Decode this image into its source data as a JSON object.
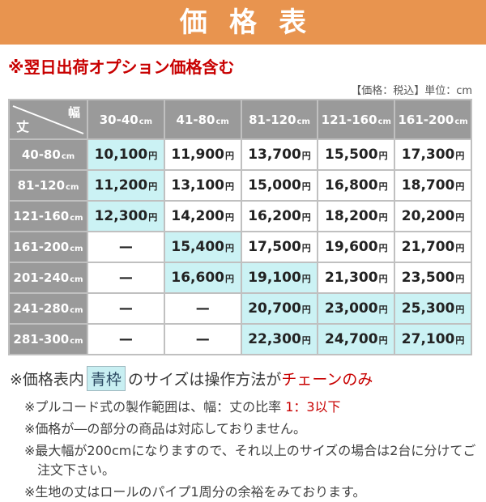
{
  "banner": {
    "title": "価格表"
  },
  "subtitle": {
    "text": "※翌日出荷オプション価格含む"
  },
  "unit_note": "【価格：税込】単位：cm",
  "colors": {
    "accent_orange": "#E8944F",
    "alert_red": "#C80000",
    "header_gray": "#9A9A9A",
    "highlight_cyan": "#CBF2F4"
  },
  "table": {
    "corner_top": "幅",
    "corner_bottom": "丈",
    "unit_small": "cm",
    "yen_suffix": "円",
    "col_headers": [
      "30-40",
      "41-80",
      "81-120",
      "121-160",
      "161-200"
    ],
    "rows": [
      {
        "label": "40-80",
        "cells": [
          {
            "v": "10,100",
            "hl": true
          },
          {
            "v": "11,900"
          },
          {
            "v": "13,700"
          },
          {
            "v": "15,500"
          },
          {
            "v": "17,300"
          }
        ]
      },
      {
        "label": "81-120",
        "cells": [
          {
            "v": "11,200",
            "hl": true
          },
          {
            "v": "13,100"
          },
          {
            "v": "15,000"
          },
          {
            "v": "16,800"
          },
          {
            "v": "18,700"
          }
        ]
      },
      {
        "label": "121-160",
        "cells": [
          {
            "v": "12,300",
            "hl": true
          },
          {
            "v": "14,200"
          },
          {
            "v": "16,200"
          },
          {
            "v": "18,200"
          },
          {
            "v": "20,200"
          }
        ]
      },
      {
        "label": "161-200",
        "cells": [
          {
            "v": "—",
            "dash": true
          },
          {
            "v": "15,400",
            "hl": true
          },
          {
            "v": "17,500"
          },
          {
            "v": "19,600"
          },
          {
            "v": "21,700"
          }
        ]
      },
      {
        "label": "201-240",
        "cells": [
          {
            "v": "—",
            "dash": true
          },
          {
            "v": "16,600",
            "hl": true
          },
          {
            "v": "19,100",
            "hl": true
          },
          {
            "v": "21,300"
          },
          {
            "v": "23,500"
          }
        ]
      },
      {
        "label": "241-280",
        "cells": [
          {
            "v": "—",
            "dash": true
          },
          {
            "v": "—",
            "dash": true
          },
          {
            "v": "20,700",
            "hl": true
          },
          {
            "v": "23,000",
            "hl": true
          },
          {
            "v": "25,300",
            "hl": true
          }
        ]
      },
      {
        "label": "281-300",
        "cells": [
          {
            "v": "—",
            "dash": true
          },
          {
            "v": "—",
            "dash": true
          },
          {
            "v": "22,300",
            "hl": true
          },
          {
            "v": "24,700",
            "hl": true
          },
          {
            "v": "27,100",
            "hl": true
          }
        ]
      }
    ]
  },
  "notes": [
    {
      "size": "large",
      "segments": [
        {
          "t": "※価格表内"
        },
        {
          "t": "青枠",
          "style": "box"
        },
        {
          "t": "のサイズは操作方法が"
        },
        {
          "t": "チェーンのみ",
          "style": "red"
        }
      ]
    },
    {
      "size": "small",
      "segments": [
        {
          "t": "※プルコード式の製作範囲は、幅：丈の比率 "
        },
        {
          "t": "1：3以下",
          "style": "red"
        }
      ]
    },
    {
      "size": "small",
      "segments": [
        {
          "t": "※価格が―の部分の商品は対応しておりません。"
        }
      ]
    },
    {
      "size": "small",
      "segments": [
        {
          "t": "※最大幅が200cmになりますので、それ以上のサイズの場合は2台に分けてご注文下さい。"
        }
      ]
    },
    {
      "size": "small",
      "segments": [
        {
          "t": "※生地の丈はロールのパイプ1周分の余裕をみております。"
        }
      ]
    }
  ]
}
